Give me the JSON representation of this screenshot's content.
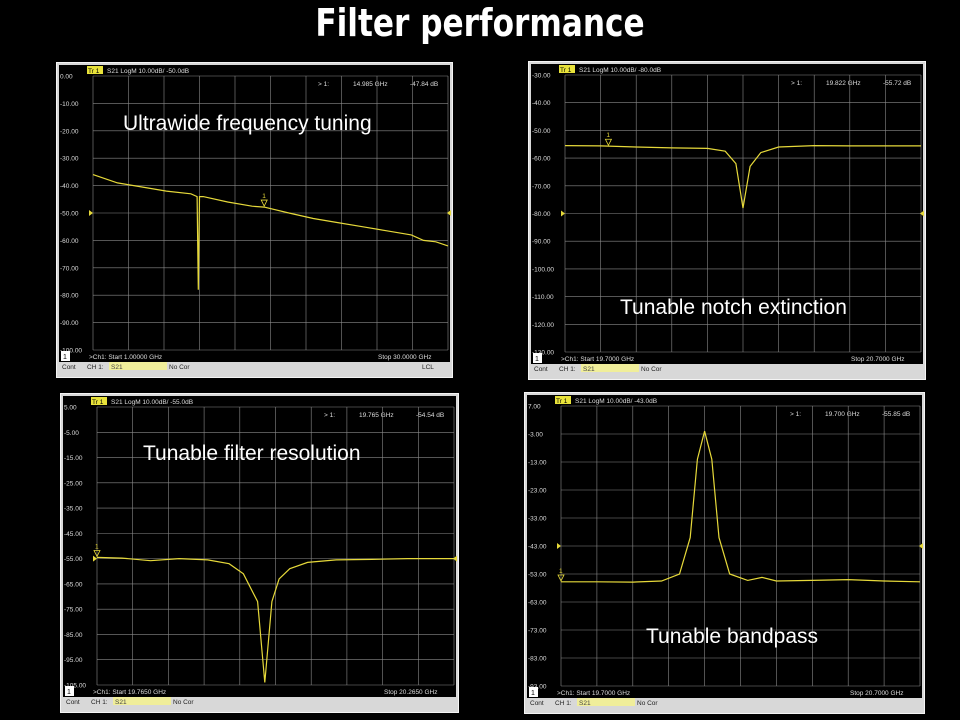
{
  "slide": {
    "title": "Filter performance"
  },
  "panels": [
    {
      "label": "Ultrawide frequency tuning",
      "header": {
        "trace_badge": "Tr 1",
        "trace_info": "S21 LogM 10.00dB/ -50.0dB",
        "marker_id": "> 1:",
        "marker_freq": "14.985 GHz",
        "marker_value": "-47.84 dB"
      },
      "footer": {
        "channel_num": "1",
        "start": ">Ch1: Start 1.00000 GHz",
        "stop": "Stop 30.0000 GHz"
      },
      "status": {
        "cont": "Cont",
        "ch": "CH 1:",
        "param": "S21",
        "cor": "No Cor",
        "extra": "LCL"
      },
      "marker_label": "1",
      "chart_data": {
        "type": "line",
        "title": "Ultrawide frequency tuning",
        "x_unit": "GHz",
        "xlim": [
          1.0,
          30.0
        ],
        "ylim": [
          -100,
          0
        ],
        "y_ticks": [
          "0.00",
          "-10.00",
          "-20.00",
          "-30.00",
          "-40.00",
          "-50.00",
          "-60.00",
          "-70.00",
          "-80.00",
          "-90.00",
          "-100.00"
        ],
        "reference_level": -50,
        "series": [
          {
            "x": [
              1,
              3,
              5,
              7,
              9,
              9.5,
              9.6,
              9.7,
              10,
              12,
              14,
              14.985,
              17,
              19,
              21,
              23,
              25,
              27,
              28,
              29,
              30
            ],
            "y": [
              -36,
              -39,
              -40.5,
              -42,
              -43,
              -44,
              -78,
              -44,
              -44,
              -46,
              -47.5,
              -47.84,
              -50,
              -52,
              -53.5,
              -55,
              -56.5,
              -58,
              -60,
              -60.5,
              -62
            ]
          }
        ],
        "marker": {
          "x": 14.985,
          "y": -47.84
        }
      }
    },
    {
      "label": "Tunable notch extinction",
      "header": {
        "trace_badge": "Tr 1",
        "trace_info": "S21 LogM 10.00dB/ -80.0dB",
        "marker_id": "> 1:",
        "marker_freq": "19.822 GHz",
        "marker_value": "-55.72 dB"
      },
      "footer": {
        "channel_num": "1",
        "start": ">Ch1: Start 19.7000 GHz",
        "stop": "Stop 20.7000 GHz"
      },
      "status": {
        "cont": "Cont",
        "ch": "CH 1:",
        "param": "S21",
        "cor": "No Cor",
        "extra": ""
      },
      "marker_label": "1",
      "chart_data": {
        "type": "line",
        "title": "Tunable notch extinction",
        "x_unit": "GHz",
        "xlim": [
          19.7,
          20.7
        ],
        "ylim": [
          -130,
          -30
        ],
        "y_ticks": [
          "-30.00",
          "-40.00",
          "-50.00",
          "-60.00",
          "-70.00",
          "-80.00",
          "-90.00",
          "-100.00",
          "-110.00",
          "-120.00",
          "-130.00"
        ],
        "reference_level": -80,
        "series": [
          {
            "x": [
              19.7,
              19.8,
              19.9,
              20.0,
              20.1,
              20.15,
              20.18,
              20.2,
              20.22,
              20.25,
              20.3,
              20.4,
              20.5,
              20.6,
              20.7
            ],
            "y": [
              -55.5,
              -55.6,
              -56,
              -56.3,
              -56.5,
              -57.5,
              -62,
              -78,
              -63,
              -58,
              -56,
              -55.5,
              -55.6,
              -55.6,
              -55.6
            ]
          }
        ],
        "marker": {
          "x": 19.822,
          "y": -55.72
        }
      }
    },
    {
      "label": "Tunable filter resolution",
      "header": {
        "trace_badge": "Tr 1",
        "trace_info": "S21 LogM 10.00dB/ -55.0dB",
        "marker_id": "> 1:",
        "marker_freq": "19.765 GHz",
        "marker_value": "-54.54 dB"
      },
      "footer": {
        "channel_num": "1",
        "start": ">Ch1: Start 19.7650 GHz",
        "stop": "Stop 20.2650 GHz"
      },
      "status": {
        "cont": "Cont",
        "ch": "CH 1:",
        "param": "S21",
        "cor": "No Cor",
        "extra": ""
      },
      "marker_label": "1",
      "chart_data": {
        "type": "line",
        "title": "Tunable filter resolution",
        "x_unit": "GHz",
        "xlim": [
          19.765,
          20.265
        ],
        "ylim": [
          -105,
          5
        ],
        "y_ticks": [
          "5.00",
          "-5.00",
          "-15.00",
          "-25.00",
          "-35.00",
          "-45.00",
          "-55.00",
          "-65.00",
          "-75.00",
          "-85.00",
          "-95.00",
          "-105.00"
        ],
        "reference_level": -55,
        "series": [
          {
            "x": [
              19.765,
              19.8,
              19.84,
              19.88,
              19.92,
              19.95,
              19.97,
              19.99,
              20.0,
              20.01,
              20.02,
              20.035,
              20.06,
              20.1,
              20.15,
              20.2,
              20.265
            ],
            "y": [
              -54.5,
              -54.8,
              -55.8,
              -55,
              -55.5,
              -57,
              -61,
              -72,
              -104,
              -72,
              -63,
              -59,
              -56.5,
              -55.5,
              -55.3,
              -55,
              -55
            ]
          }
        ],
        "marker": {
          "x": 19.765,
          "y": -54.54
        }
      }
    },
    {
      "label": "Tunable bandpass",
      "header": {
        "trace_badge": "Tr 1",
        "trace_info": "S21 LogM 10.00dB/ -43.0dB",
        "marker_id": "> 1:",
        "marker_freq": "19.700 GHz",
        "marker_value": "-55.85 dB"
      },
      "footer": {
        "channel_num": "1",
        "start": ">Ch1: Start 19.7000 GHz",
        "stop": "Stop 20.7000 GHz"
      },
      "status": {
        "cont": "Cont",
        "ch": "CH 1:",
        "param": "S21",
        "cor": "No Cor",
        "extra": ""
      },
      "marker_label": "1",
      "chart_data": {
        "type": "line",
        "title": "Tunable bandpass",
        "x_unit": "GHz",
        "xlim": [
          19.7,
          20.7
        ],
        "ylim": [
          -93,
          7
        ],
        "y_ticks": [
          "7.00",
          "-3.00",
          "-13.00",
          "-23.00",
          "-33.00",
          "-43.00",
          "-53.00",
          "-63.00",
          "-73.00",
          "-83.00",
          "-93.00"
        ],
        "reference_level": -43,
        "series": [
          {
            "x": [
              19.7,
              19.8,
              19.9,
              19.98,
              20.03,
              20.06,
              20.08,
              20.1,
              20.12,
              20.14,
              20.17,
              20.22,
              20.26,
              20.3,
              20.4,
              20.5,
              20.6,
              20.7
            ],
            "y": [
              -55.8,
              -55.8,
              -55.9,
              -55.5,
              -53,
              -40,
              -12,
              -2,
              -12,
              -40,
              -53,
              -55.3,
              -54.2,
              -55.5,
              -55.3,
              -55,
              -55.5,
              -55.8
            ]
          }
        ],
        "marker": {
          "x": 19.7,
          "y": -55.85
        }
      }
    }
  ],
  "colors": {
    "trace": "#e6d93a",
    "grid": "#8a8a8a",
    "background": "#000000",
    "frame": "#d8d8d8",
    "badge": "#e8e23a"
  }
}
